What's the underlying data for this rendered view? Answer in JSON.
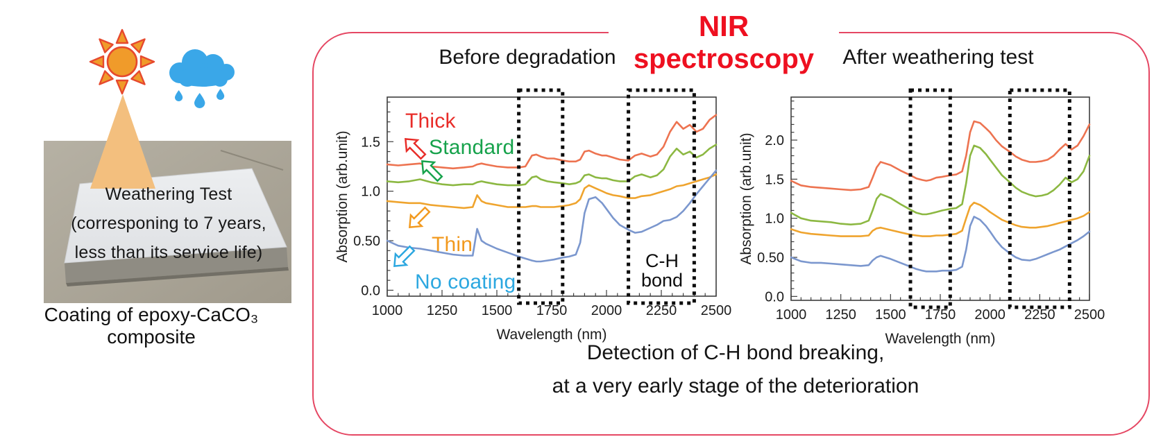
{
  "colors": {
    "title_red": "#ee1020",
    "panel_border_red": "#e54763",
    "box_black": "#0c0c0c"
  },
  "weathering": {
    "photo_lines": [
      "Weathering Test",
      "(corresponing to 7 years,",
      "less than its service  life)"
    ],
    "caption": "Coating of epoxy-CaCO₃ composite",
    "icons": [
      "sun-icon",
      "rain-cloud-icon",
      "light-beam"
    ]
  },
  "panel": {
    "title_main": "NIR",
    "title_sub": " spectroscopy",
    "footer": [
      "Detection of C-H bond breaking,",
      "at a very early stage of the deterioration"
    ]
  },
  "chart_data": [
    {
      "type": "line",
      "title": "Before degradation",
      "xlabel": "Wavelength (nm)",
      "ylabel": "Absorption (arb.unit)",
      "xlim": [
        1000,
        2500
      ],
      "ylim": [
        -0.06,
        1.95
      ],
      "grid": false,
      "x_ticks": [
        {
          "v": 1000,
          "label": "1000"
        },
        {
          "v": 1250,
          "label": "1250"
        },
        {
          "v": 1500,
          "label": "1500"
        },
        {
          "v": 1750,
          "label": "1750"
        },
        {
          "v": 2000,
          "label": "2000"
        },
        {
          "v": 2250,
          "label": "2250"
        },
        {
          "v": 2500,
          "label": "2500"
        }
      ],
      "y_ticks": [
        {
          "v": 0,
          "label": "0.0"
        },
        {
          "v": 0.5,
          "label": "0.50"
        },
        {
          "v": 1.0,
          "label": "1.0"
        },
        {
          "v": 1.5,
          "label": "1.5"
        }
      ],
      "minor_x_step": 50,
      "minor_y_step": 0.1,
      "highlight_boxes": [
        {
          "x1": 1600,
          "x2": 1800
        },
        {
          "x1": 2100,
          "x2": 2400
        }
      ],
      "annotation": {
        "line1": "C-H",
        "line2": "bond"
      },
      "curve_labels": [
        {
          "text": "Thick",
          "color": "#e82c28",
          "arrow": "down-left"
        },
        {
          "text": "Standard",
          "color": "#16a24b",
          "arrow": "down-left"
        },
        {
          "text": "Thin",
          "color": "#f2991d",
          "arrow": "up-left"
        },
        {
          "text": "No coating",
          "color": "#2ba7e0",
          "arrow": "up-left"
        }
      ],
      "x_common": [
        1000,
        1050,
        1100,
        1150,
        1200,
        1250,
        1300,
        1350,
        1390,
        1410,
        1430,
        1450,
        1500,
        1550,
        1600,
        1630,
        1660,
        1680,
        1700,
        1730,
        1760,
        1800,
        1830,
        1860,
        1880,
        1900,
        1920,
        1950,
        1980,
        2000,
        2030,
        2060,
        2100,
        2130,
        2160,
        2200,
        2230,
        2260,
        2290,
        2320,
        2350,
        2380,
        2410,
        2440,
        2470,
        2500
      ],
      "series": [
        {
          "name": "Thick",
          "color": "#ed7350",
          "y": [
            1.27,
            1.26,
            1.27,
            1.28,
            1.25,
            1.24,
            1.23,
            1.24,
            1.25,
            1.27,
            1.28,
            1.27,
            1.25,
            1.24,
            1.24,
            1.25,
            1.36,
            1.37,
            1.35,
            1.33,
            1.33,
            1.31,
            1.3,
            1.3,
            1.32,
            1.4,
            1.41,
            1.38,
            1.36,
            1.36,
            1.34,
            1.32,
            1.31,
            1.36,
            1.38,
            1.35,
            1.37,
            1.45,
            1.6,
            1.7,
            1.63,
            1.67,
            1.6,
            1.63,
            1.72,
            1.77
          ]
        },
        {
          "name": "Standard",
          "color": "#8cb842",
          "y": [
            1.1,
            1.09,
            1.1,
            1.12,
            1.09,
            1.07,
            1.06,
            1.07,
            1.07,
            1.09,
            1.1,
            1.09,
            1.07,
            1.06,
            1.06,
            1.07,
            1.14,
            1.15,
            1.12,
            1.1,
            1.09,
            1.08,
            1.07,
            1.08,
            1.1,
            1.16,
            1.17,
            1.14,
            1.13,
            1.13,
            1.11,
            1.1,
            1.1,
            1.15,
            1.17,
            1.14,
            1.16,
            1.22,
            1.35,
            1.43,
            1.37,
            1.4,
            1.34,
            1.37,
            1.43,
            1.47
          ]
        },
        {
          "name": "Thin",
          "color": "#efa42e",
          "y": [
            0.9,
            0.89,
            0.88,
            0.88,
            0.86,
            0.85,
            0.84,
            0.83,
            0.84,
            0.96,
            0.9,
            0.88,
            0.86,
            0.84,
            0.84,
            0.84,
            0.85,
            0.85,
            0.84,
            0.84,
            0.84,
            0.85,
            0.86,
            0.88,
            0.92,
            1.03,
            1.06,
            1.03,
            1.0,
            0.98,
            0.96,
            0.95,
            0.93,
            0.93,
            0.95,
            0.96,
            0.98,
            1.0,
            1.02,
            1.05,
            1.06,
            1.08,
            1.1,
            1.12,
            1.14,
            1.17
          ]
        },
        {
          "name": "No coating",
          "color": "#7b97ce",
          "y": [
            0.5,
            0.45,
            0.43,
            0.42,
            0.4,
            0.38,
            0.36,
            0.35,
            0.35,
            0.62,
            0.5,
            0.47,
            0.42,
            0.38,
            0.34,
            0.32,
            0.3,
            0.29,
            0.29,
            0.3,
            0.31,
            0.33,
            0.34,
            0.36,
            0.48,
            0.78,
            0.92,
            0.94,
            0.88,
            0.82,
            0.73,
            0.66,
            0.61,
            0.58,
            0.59,
            0.63,
            0.66,
            0.7,
            0.71,
            0.74,
            0.8,
            0.88,
            0.97,
            1.05,
            1.13,
            1.21
          ]
        }
      ]
    },
    {
      "type": "line",
      "title": "After weathering test",
      "xlabel": "Wavelength (nm)",
      "ylabel": "Absorption (arb.unit)",
      "xlim": [
        1000,
        2500
      ],
      "ylim": [
        -0.05,
        2.55
      ],
      "grid": false,
      "x_ticks": [
        {
          "v": 1000,
          "label": "1000"
        },
        {
          "v": 1250,
          "label": "1250"
        },
        {
          "v": 1500,
          "label": "1500"
        },
        {
          "v": 1750,
          "label": "1750"
        },
        {
          "v": 2000,
          "label": "2000"
        },
        {
          "v": 2250,
          "label": "2250"
        },
        {
          "v": 2500,
          "label": "2500"
        }
      ],
      "y_ticks": [
        {
          "v": 0,
          "label": "0.0"
        },
        {
          "v": 0.5,
          "label": "0.50"
        },
        {
          "v": 1.0,
          "label": "1.0"
        },
        {
          "v": 1.5,
          "label": "1.5"
        },
        {
          "v": 2.0,
          "label": "2.0"
        }
      ],
      "minor_x_step": 50,
      "minor_y_step": 0.1,
      "highlight_boxes": [
        {
          "x1": 1600,
          "x2": 1800
        },
        {
          "x1": 2100,
          "x2": 2400
        }
      ],
      "x_common": [
        1000,
        1050,
        1100,
        1150,
        1200,
        1250,
        1300,
        1350,
        1390,
        1410,
        1430,
        1450,
        1500,
        1550,
        1600,
        1630,
        1660,
        1680,
        1700,
        1730,
        1760,
        1800,
        1830,
        1860,
        1880,
        1900,
        1920,
        1950,
        1980,
        2000,
        2030,
        2060,
        2100,
        2130,
        2160,
        2200,
        2230,
        2260,
        2290,
        2320,
        2350,
        2380,
        2410,
        2440,
        2470,
        2500
      ],
      "series": [
        {
          "name": "Thick",
          "color": "#ed7350",
          "y": [
            1.48,
            1.42,
            1.4,
            1.39,
            1.38,
            1.37,
            1.36,
            1.37,
            1.4,
            1.52,
            1.65,
            1.72,
            1.68,
            1.61,
            1.55,
            1.51,
            1.49,
            1.48,
            1.49,
            1.52,
            1.53,
            1.55,
            1.56,
            1.6,
            1.8,
            2.1,
            2.24,
            2.22,
            2.15,
            2.1,
            2.0,
            1.92,
            1.85,
            1.79,
            1.75,
            1.72,
            1.72,
            1.73,
            1.75,
            1.8,
            1.88,
            1.95,
            1.88,
            1.93,
            2.05,
            2.2
          ]
        },
        {
          "name": "Standard",
          "color": "#8cb842",
          "y": [
            1.07,
            1.0,
            0.97,
            0.96,
            0.95,
            0.93,
            0.92,
            0.93,
            0.97,
            1.1,
            1.25,
            1.31,
            1.26,
            1.18,
            1.11,
            1.07,
            1.05,
            1.05,
            1.06,
            1.08,
            1.1,
            1.12,
            1.13,
            1.18,
            1.45,
            1.8,
            1.93,
            1.9,
            1.82,
            1.75,
            1.65,
            1.55,
            1.46,
            1.39,
            1.34,
            1.3,
            1.28,
            1.29,
            1.31,
            1.36,
            1.43,
            1.52,
            1.46,
            1.5,
            1.6,
            1.8
          ]
        },
        {
          "name": "Thin",
          "color": "#efa42e",
          "y": [
            0.86,
            0.82,
            0.8,
            0.79,
            0.78,
            0.77,
            0.77,
            0.77,
            0.78,
            0.84,
            0.87,
            0.88,
            0.85,
            0.82,
            0.79,
            0.78,
            0.77,
            0.77,
            0.77,
            0.78,
            0.78,
            0.79,
            0.8,
            0.84,
            1.0,
            1.15,
            1.2,
            1.17,
            1.12,
            1.08,
            1.03,
            0.98,
            0.94,
            0.91,
            0.89,
            0.88,
            0.88,
            0.89,
            0.9,
            0.92,
            0.94,
            0.96,
            0.98,
            1.0,
            1.03,
            1.08
          ]
        },
        {
          "name": "No coating",
          "color": "#7b97ce",
          "y": [
            0.5,
            0.45,
            0.43,
            0.43,
            0.42,
            0.41,
            0.4,
            0.39,
            0.4,
            0.46,
            0.5,
            0.52,
            0.48,
            0.43,
            0.38,
            0.35,
            0.33,
            0.32,
            0.32,
            0.32,
            0.33,
            0.33,
            0.34,
            0.38,
            0.6,
            0.9,
            1.02,
            0.98,
            0.9,
            0.83,
            0.72,
            0.63,
            0.55,
            0.5,
            0.47,
            0.46,
            0.48,
            0.51,
            0.54,
            0.57,
            0.6,
            0.64,
            0.68,
            0.72,
            0.77,
            0.83
          ]
        }
      ]
    }
  ]
}
